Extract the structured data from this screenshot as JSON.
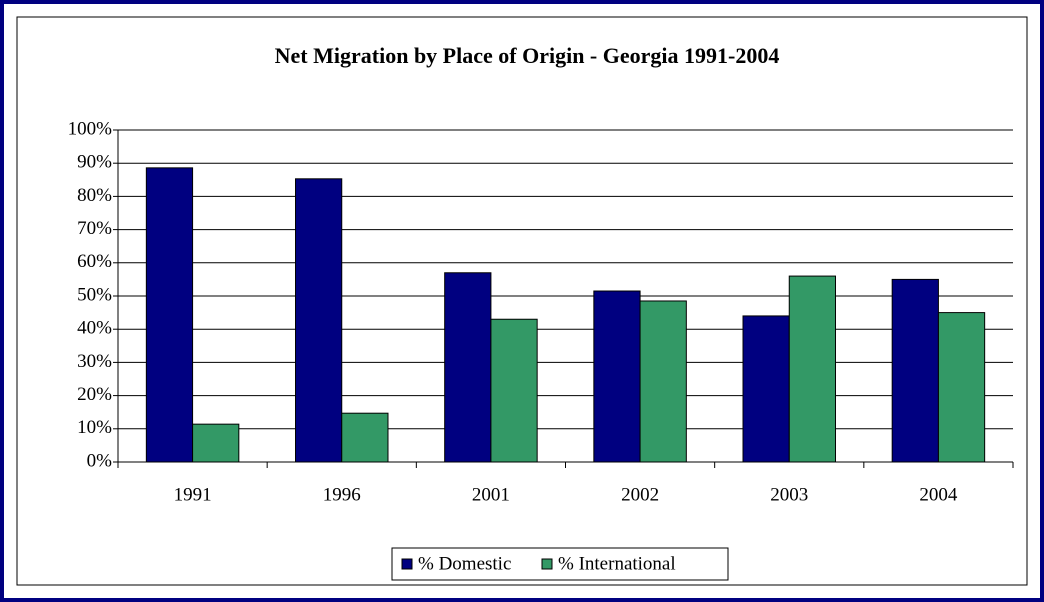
{
  "chart_data": {
    "type": "bar",
    "title": "Net Migration by Place of Origin - Georgia 1991-2004",
    "categories": [
      "1991",
      "1996",
      "2001",
      "2002",
      "2003",
      "2004"
    ],
    "series": [
      {
        "name": "% Domestic",
        "color": "#000080",
        "values": [
          88.6,
          85.3,
          57,
          51.5,
          44,
          55
        ]
      },
      {
        "name": "% International",
        "color": "#339966",
        "values": [
          11.4,
          14.7,
          43,
          48.5,
          56,
          45
        ]
      }
    ],
    "ylim": [
      0,
      100
    ],
    "yticks": [
      {
        "value": 0,
        "label": "0%"
      },
      {
        "value": 10,
        "label": "10%"
      },
      {
        "value": 20,
        "label": "20%"
      },
      {
        "value": 30,
        "label": "30%"
      },
      {
        "value": 40,
        "label": "40%"
      },
      {
        "value": 50,
        "label": "50%"
      },
      {
        "value": 60,
        "label": "60%"
      },
      {
        "value": 70,
        "label": "70%"
      },
      {
        "value": 80,
        "label": "80%"
      },
      {
        "value": 90,
        "label": "90%"
      },
      {
        "value": 100,
        "label": "100%"
      }
    ],
    "grid": true,
    "legend": "bottom"
  }
}
